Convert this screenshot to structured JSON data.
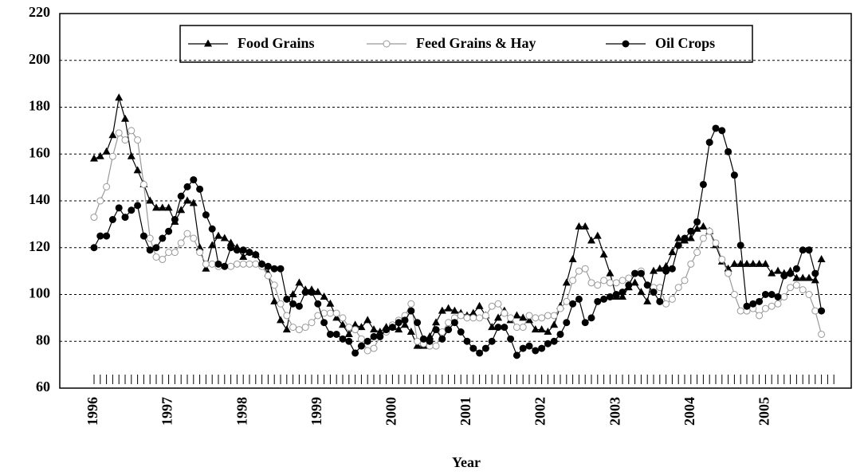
{
  "chart_data": {
    "type": "line",
    "x_label": "Year",
    "categories": [
      "1996",
      null,
      null,
      null,
      null,
      null,
      null,
      null,
      null,
      null,
      null,
      null,
      "1997",
      null,
      null,
      null,
      null,
      null,
      null,
      null,
      null,
      null,
      null,
      null,
      "1998",
      null,
      null,
      null,
      null,
      null,
      null,
      null,
      null,
      null,
      null,
      null,
      "1999",
      null,
      null,
      null,
      null,
      null,
      null,
      null,
      null,
      null,
      null,
      null,
      "2000",
      null,
      null,
      null,
      null,
      null,
      null,
      null,
      null,
      null,
      null,
      null,
      "2001",
      null,
      null,
      null,
      null,
      null,
      null,
      null,
      null,
      null,
      null,
      null,
      "2002",
      null,
      null,
      null,
      null,
      null,
      null,
      null,
      null,
      null,
      null,
      null,
      "2003",
      null,
      null,
      null,
      null,
      null,
      null,
      null,
      null,
      null,
      null,
      null,
      "2004",
      null,
      null,
      null,
      null,
      null,
      null,
      null,
      null,
      null,
      null,
      null,
      "2005",
      null,
      null,
      null,
      null,
      null,
      null,
      null,
      null,
      null,
      null,
      null
    ],
    "series": [
      {
        "name": "Food Grains",
        "color": "#000000",
        "marker": "triangle",
        "values": [
          158,
          159,
          161,
          168,
          184,
          175,
          159,
          153,
          147,
          140,
          137,
          137,
          137,
          131,
          136,
          140,
          139,
          120,
          111,
          121,
          125,
          124,
          122,
          120,
          116,
          118,
          117,
          113,
          109,
          97,
          89,
          85,
          100,
          105,
          102,
          102,
          101,
          99,
          96,
          90,
          87,
          83,
          87,
          86,
          89,
          85,
          84,
          86,
          86,
          85,
          87,
          84,
          78,
          78,
          82,
          88,
          93,
          94,
          93,
          92,
          91,
          92,
          95,
          91,
          86,
          90,
          93,
          89,
          91,
          90,
          89,
          85,
          85,
          84,
          87,
          95,
          105,
          115,
          129,
          129,
          123,
          125,
          117,
          109,
          99,
          99,
          103,
          105,
          101,
          97,
          110,
          111,
          112,
          118,
          124,
          123,
          124,
          128,
          129,
          127,
          121,
          114,
          111,
          113,
          113,
          113,
          113,
          113,
          113,
          109,
          110,
          109,
          110,
          107,
          107,
          107,
          106,
          115,
          null,
          null
        ]
      },
      {
        "name": "Feed Grains & Hay",
        "color": "#999999",
        "marker": "circle-open",
        "values": [
          133,
          140,
          146,
          159,
          169,
          166,
          170,
          166,
          147,
          124,
          116,
          115,
          118,
          118,
          122,
          126,
          124,
          118,
          113,
          113,
          112,
          112,
          112,
          113,
          113,
          113,
          113,
          112,
          108,
          104,
          96,
          91,
          86,
          85,
          86,
          88,
          91,
          92,
          92,
          92,
          90,
          86,
          85,
          81,
          76,
          77,
          82,
          84,
          87,
          89,
          91,
          96,
          80,
          79,
          78,
          78,
          84,
          88,
          90,
          91,
          90,
          90,
          90,
          91,
          95,
          96,
          92,
          90,
          86,
          86,
          91,
          90,
          90,
          91,
          91,
          94,
          97,
          106,
          110,
          111,
          105,
          104,
          106,
          105,
          105,
          106,
          107,
          109,
          110,
          104,
          103,
          103,
          96,
          98,
          103,
          106,
          113,
          118,
          124,
          127,
          122,
          115,
          109,
          100,
          93,
          93,
          94,
          91,
          94,
          95,
          96,
          99,
          103,
          104,
          102,
          100,
          93,
          83,
          null,
          null
        ]
      },
      {
        "name": "Oil Crops",
        "color": "#000000",
        "marker": "circle",
        "values": [
          120,
          125,
          125,
          132,
          137,
          133,
          136,
          138,
          125,
          119,
          120,
          124,
          127,
          132,
          142,
          146,
          149,
          145,
          134,
          128,
          113,
          112,
          120,
          119,
          119,
          118,
          117,
          113,
          112,
          111,
          111,
          98,
          96,
          95,
          101,
          101,
          96,
          88,
          83,
          83,
          81,
          80,
          75,
          78,
          80,
          82,
          82,
          85,
          86,
          88,
          89,
          93,
          88,
          81,
          80,
          85,
          81,
          85,
          88,
          84,
          80,
          77,
          75,
          77,
          80,
          86,
          86,
          81,
          74,
          77,
          78,
          76,
          77,
          79,
          80,
          83,
          88,
          96,
          98,
          88,
          90,
          97,
          98,
          99,
          100,
          101,
          104,
          109,
          109,
          104,
          101,
          97,
          110,
          111,
          121,
          124,
          127,
          131,
          147,
          165,
          171,
          170,
          161,
          151,
          121,
          95,
          96,
          97,
          100,
          100,
          99,
          108,
          109,
          111,
          119,
          119,
          109,
          93,
          null,
          null
        ]
      }
    ],
    "ylim": [
      60,
      220
    ],
    "yticks": [
      60,
      80,
      100,
      120,
      140,
      160,
      180,
      200,
      220
    ],
    "grid": true,
    "legend": "top"
  }
}
